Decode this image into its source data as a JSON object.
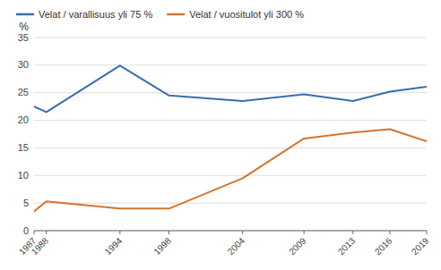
{
  "chart_data": {
    "type": "line",
    "y_label": "%",
    "x": [
      1987,
      1988,
      1994,
      1998,
      2004,
      2009,
      2013,
      2016,
      2019
    ],
    "series": [
      {
        "name": "Velat / varallisuus yli 75 %",
        "color": "#3A6EAF",
        "values": [
          22.5,
          21.5,
          29.9,
          24.5,
          23.5,
          24.7,
          23.5,
          25.2,
          26.1
        ]
      },
      {
        "name": "Velat / vuositulot yli 300 %",
        "color": "#D4762A",
        "values": [
          3.5,
          5.3,
          4.0,
          4.0,
          9.5,
          16.7,
          17.8,
          18.4,
          16.2
        ]
      }
    ],
    "xlim": [
      1987,
      2019
    ],
    "xticks": [
      1987,
      1988,
      1994,
      1998,
      2004,
      2009,
      2013,
      2016,
      2019
    ],
    "ylim": [
      0,
      35
    ],
    "yticks": [
      0,
      5,
      10,
      15,
      20,
      25,
      30,
      35
    ],
    "grid": true,
    "legend": "upper left"
  }
}
